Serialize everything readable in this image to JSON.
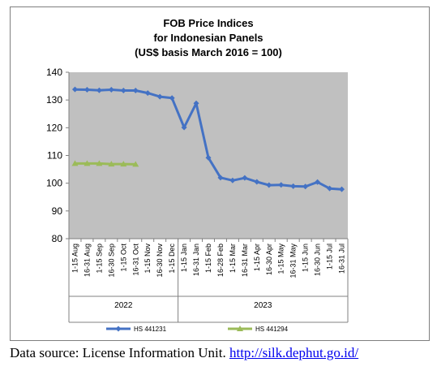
{
  "chart_data": {
    "type": "line",
    "title_lines": [
      "FOB Price Indices",
      "for Indonesian Panels",
      "(US$ basis March 2016 = 100)"
    ],
    "ylim": [
      80,
      140
    ],
    "yticks": [
      "80",
      "90",
      "100",
      "110",
      "120",
      "130",
      "140"
    ],
    "grid": false,
    "categories": [
      "1-15 Aug",
      "16-31 Aug",
      "1-15 Sep",
      "16-30 Sep",
      "1-15 Oct",
      "16-31 Oct",
      "1-15 Nov",
      "16-30 Nov",
      "1-15 Dec",
      "1-15 Jan",
      "16-31 Jan",
      "1-15 Feb",
      "16-28 Feb",
      "1-15 Mar",
      "16-31 Mar",
      "1-15 Apr",
      "16-30 Apr",
      "1-15 May",
      "16-31 May",
      "1-15 Jun",
      "16-30 Jun",
      "1-15 Jul",
      "16-31 Jul"
    ],
    "groups": [
      {
        "label": "2022",
        "start": 0,
        "end": 8
      },
      {
        "label": "2023",
        "start": 9,
        "end": 22
      }
    ],
    "series": [
      {
        "name": "HS 441231",
        "color": "#4472c4",
        "marker": "diamond",
        "values": [
          133.8,
          133.7,
          133.5,
          133.7,
          133.4,
          133.4,
          132.5,
          131.2,
          130.7,
          120.1,
          128.8,
          109.2,
          102.0,
          101.0,
          101.9,
          100.5,
          99.3,
          99.4,
          98.9,
          98.8,
          100.4,
          98.1,
          97.8
        ]
      },
      {
        "name": "HS 441294",
        "color": "#9bbb59",
        "marker": "triangle",
        "values": [
          107.1,
          107.1,
          107.1,
          106.9,
          106.9,
          106.8,
          null,
          null,
          null,
          null,
          null,
          null,
          null,
          null,
          null,
          null,
          null,
          null,
          null,
          null,
          null,
          null,
          null
        ]
      }
    ],
    "legend_position": "bottom"
  },
  "source": {
    "prefix": "Data source: License Information Unit. ",
    "link_text": "http://silk.dephut.go.id/"
  }
}
